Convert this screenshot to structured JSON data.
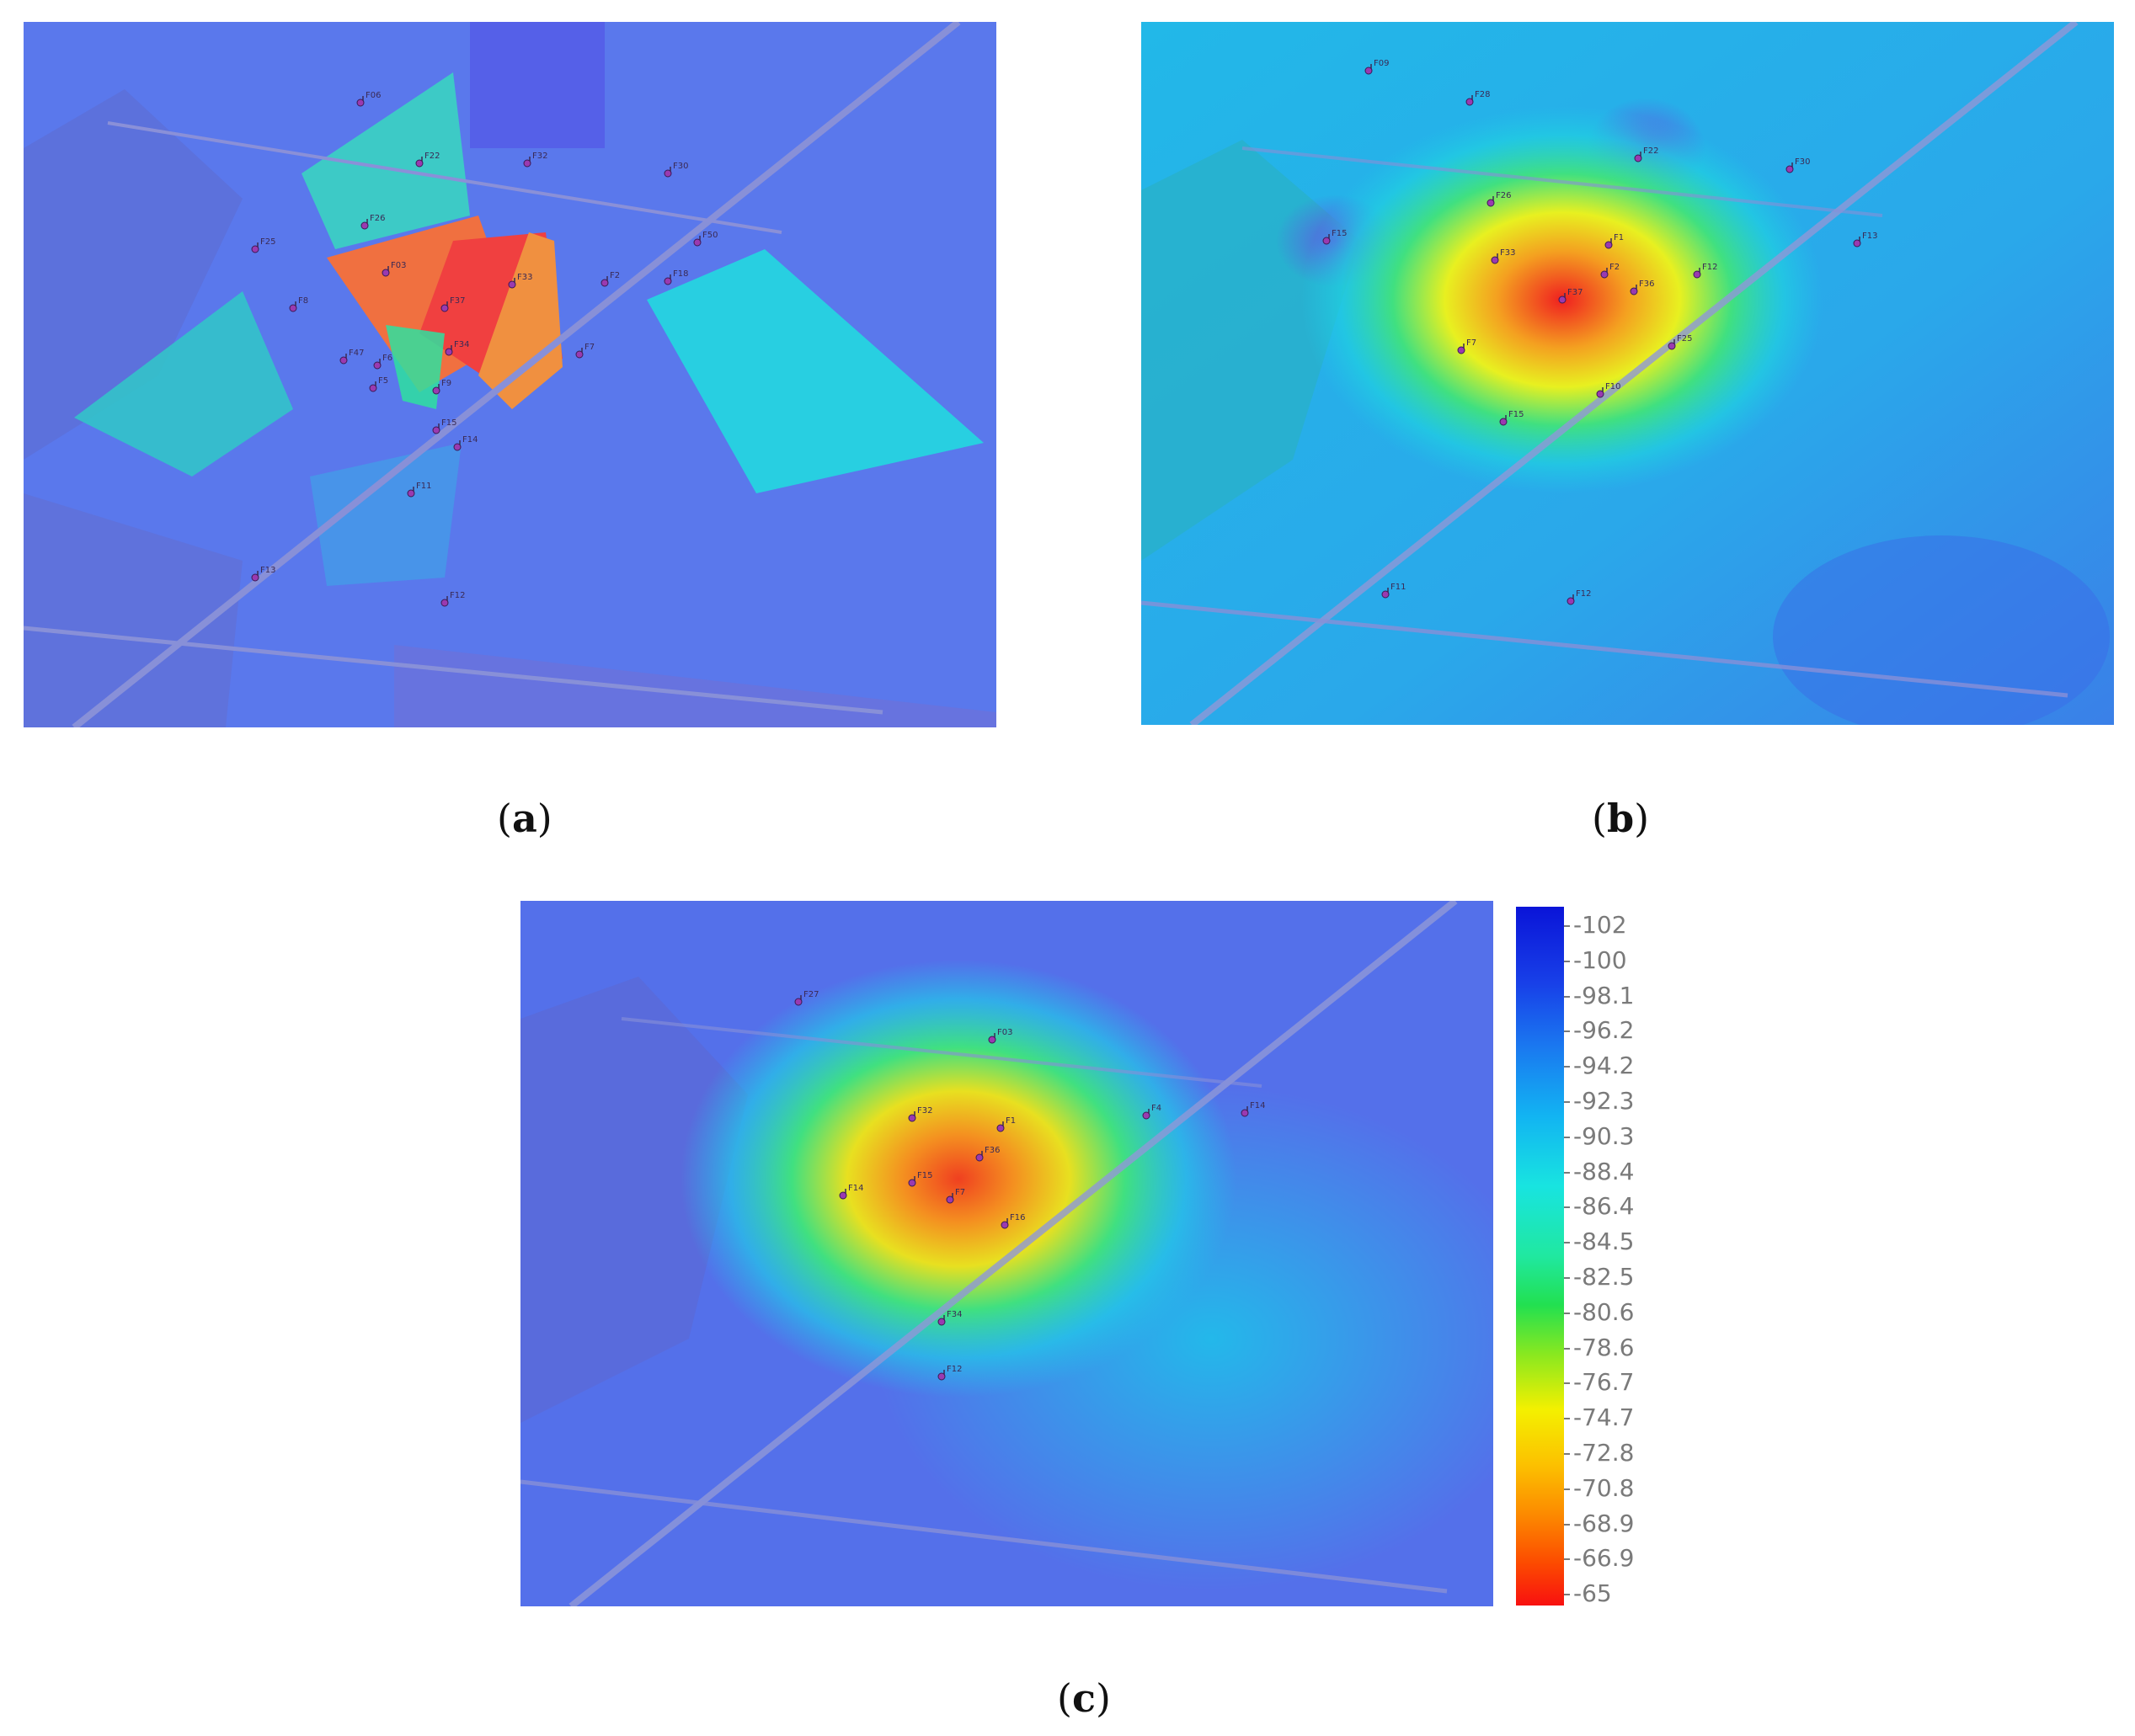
{
  "captions": {
    "a": "a",
    "b": "b",
    "c": "c"
  },
  "panel_a": {
    "markers": [
      "F06",
      "F22",
      "F32",
      "F30",
      "F26",
      "F25",
      "F03",
      "F33",
      "F37",
      "F50",
      "F2",
      "F18",
      "F8",
      "F47",
      "F34",
      "F7",
      "F6",
      "F5",
      "F9",
      "F15",
      "F14",
      "F11",
      "F13",
      "F12"
    ]
  },
  "panel_b": {
    "markers": [
      "F09",
      "F28",
      "F22",
      "F30",
      "F26",
      "F15",
      "F33",
      "F1",
      "F2",
      "F37",
      "F36",
      "F7",
      "F12",
      "F25",
      "F10",
      "F15",
      "F13",
      "F11",
      "F12"
    ]
  },
  "panel_c": {
    "markers": [
      "F27",
      "F03",
      "F32",
      "F1",
      "F36",
      "F15",
      "F14",
      "F7",
      "F16",
      "F34",
      "F4",
      "F14",
      "F12"
    ]
  },
  "colorbar": {
    "ticks": [
      "-102",
      "-100",
      "-98.1",
      "-96.2",
      "-94.2",
      "-92.3",
      "-90.3",
      "-88.4",
      "-86.4",
      "-84.5",
      "-82.5",
      "-80.6",
      "-78.6",
      "-76.7",
      "-74.7",
      "-72.8",
      "-70.8",
      "-68.9",
      "-66.9",
      "-65"
    ]
  }
}
